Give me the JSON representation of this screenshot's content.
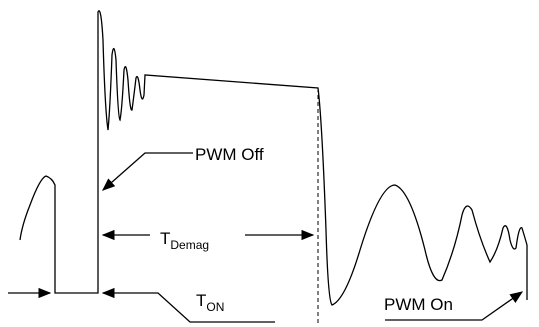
{
  "labels": {
    "pwm_off": "PWM Off",
    "t_demag": {
      "main": "T",
      "sub": "Demag"
    },
    "t_on": {
      "main": "T",
      "sub": "ON"
    },
    "pwm_on": "PWM On"
  }
}
